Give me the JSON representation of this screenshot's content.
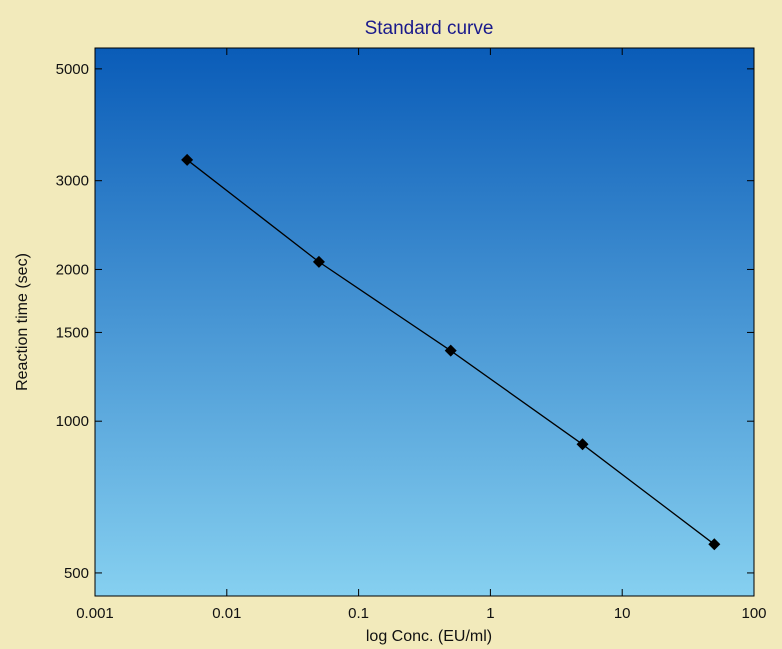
{
  "chart_data": {
    "type": "scatter",
    "title": "Standard curve",
    "xlabel": "log Conc. (EU/ml)",
    "ylabel": "Reaction time (sec)",
    "x_scale": "log",
    "y_scale": "log",
    "xlim": [
      0.001,
      100
    ],
    "ylim": [
      450,
      5500
    ],
    "x_ticks": [
      0.001,
      0.01,
      0.1,
      1,
      10,
      100
    ],
    "x_tick_labels": [
      "0.001",
      "0.01",
      "0.1",
      "1",
      "10",
      "100"
    ],
    "y_ticks": [
      500,
      1000,
      1500,
      2000,
      3000,
      5000
    ],
    "y_tick_labels": [
      "500",
      "1000",
      "1500",
      "2000",
      "3000",
      "5000"
    ],
    "grid": false,
    "background_gradient": [
      "#0a5cb8",
      "#86d0f0"
    ],
    "frame_color": "#f2eabb",
    "series": [
      {
        "x": [
          0.005,
          0.05,
          0.5,
          5,
          50
        ],
        "y": [
          3300,
          2070,
          1380,
          900,
          570
        ],
        "marker": "diamond",
        "color": "#000000",
        "fit_line": true
      }
    ]
  }
}
